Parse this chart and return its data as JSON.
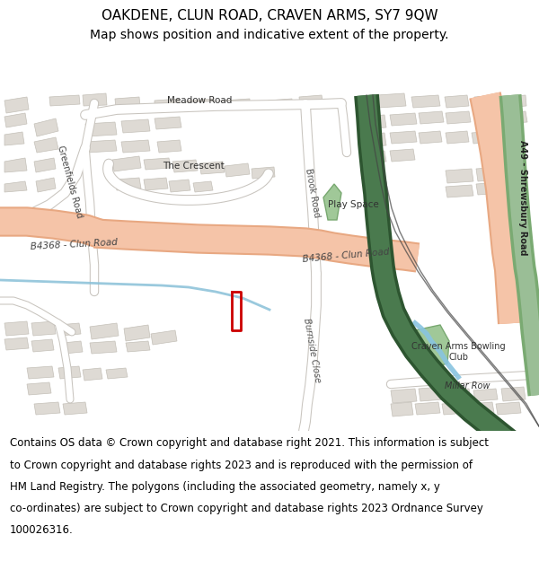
{
  "title_line1": "OAKDENE, CLUN ROAD, CRAVEN ARMS, SY7 9QW",
  "title_line2": "Map shows position and indicative extent of the property.",
  "footer_lines": [
    "Contains OS data © Crown copyright and database right 2021. This information is subject",
    "to Crown copyright and database rights 2023 and is reproduced with the permission of",
    "HM Land Registry. The polygons (including the associated geometry, namely x, y",
    "co-ordinates) are subject to Crown copyright and database rights 2023 Ordnance Survey",
    "100026316."
  ],
  "map_bg": "#f0eeea",
  "road_salmon": "#f5c4a8",
  "road_salmon_edge": "#e8a882",
  "road_white": "#ffffff",
  "road_gray_edge": "#c8c4be",
  "green_dark": "#4a7a4e",
  "green_dark_edge": "#2d5530",
  "green_light": "#9abe96",
  "green_light_edge": "#7aaa72",
  "building_fill": "#dedad4",
  "building_stroke": "#c4c0b8",
  "plot_color": "#cc0000",
  "water_color": "#88c0d8",
  "title_fontsize": 11,
  "subtitle_fontsize": 10,
  "footer_fontsize": 8.5
}
